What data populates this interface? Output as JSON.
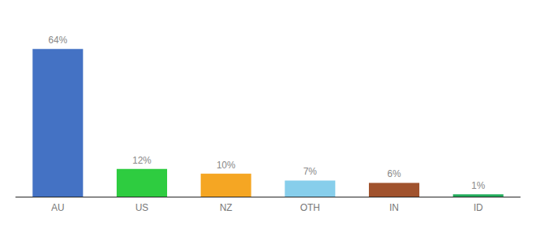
{
  "chart_data": {
    "type": "bar",
    "categories": [
      "AU",
      "US",
      "NZ",
      "OTH",
      "IN",
      "ID"
    ],
    "values": [
      64,
      12,
      10,
      7,
      6,
      1
    ],
    "value_labels": [
      "64%",
      "12%",
      "10%",
      "7%",
      "6%",
      "1%"
    ],
    "colors": [
      "#4472c4",
      "#2ecc40",
      "#f5a623",
      "#87ceeb",
      "#a0522d",
      "#27ae60"
    ],
    "ylim": [
      0,
      75
    ],
    "grid": false,
    "data_labels": true,
    "tick_labels": "x"
  }
}
